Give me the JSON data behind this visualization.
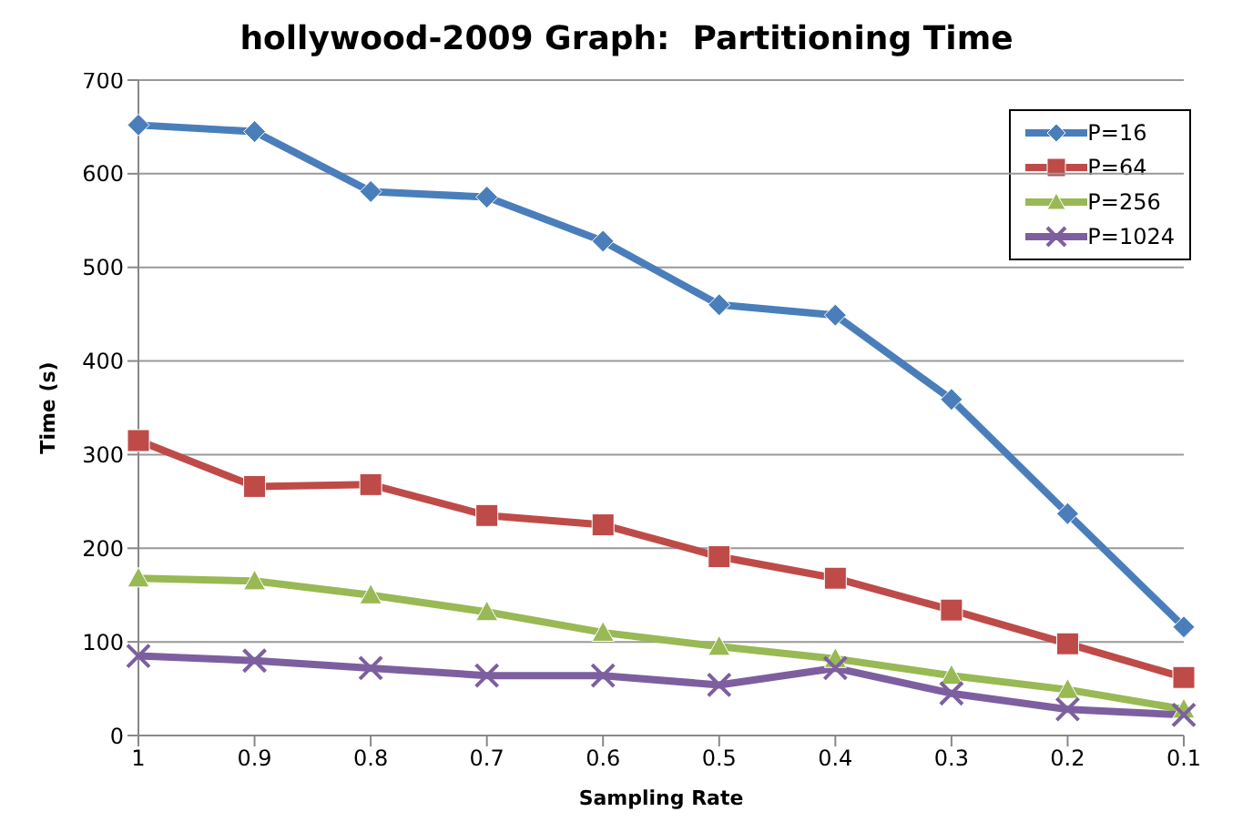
{
  "chart_data": {
    "type": "line",
    "title": "hollywood-2009 Graph:  Partitioning Time",
    "xlabel": "Sampling Rate",
    "ylabel": "Time (s)",
    "categories": [
      "1",
      "0.9",
      "0.8",
      "0.7",
      "0.6",
      "0.5",
      "0.4",
      "0.3",
      "0.2",
      "0.1"
    ],
    "series": [
      {
        "name": "P=16",
        "color": "#4a7ebb",
        "marker": "diamond",
        "values": [
          652,
          645,
          581,
          575,
          528,
          460,
          449,
          359,
          237,
          116
        ]
      },
      {
        "name": "P=64",
        "color": "#be4b48",
        "marker": "square",
        "values": [
          315,
          266,
          268,
          235,
          225,
          191,
          168,
          134,
          98,
          62
        ]
      },
      {
        "name": "P=256",
        "color": "#98b954",
        "marker": "triangle",
        "values": [
          168,
          165,
          150,
          132,
          110,
          95,
          82,
          64,
          49,
          28
        ]
      },
      {
        "name": "P=1024",
        "color": "#7d5fa0",
        "marker": "cross",
        "values": [
          85,
          80,
          72,
          64,
          64,
          54,
          72,
          45,
          28,
          22
        ]
      }
    ],
    "ylim": [
      0,
      700
    ],
    "yticks": [
      0,
      100,
      200,
      300,
      400,
      500,
      600,
      700
    ],
    "grid": "y",
    "legend": "top right"
  }
}
